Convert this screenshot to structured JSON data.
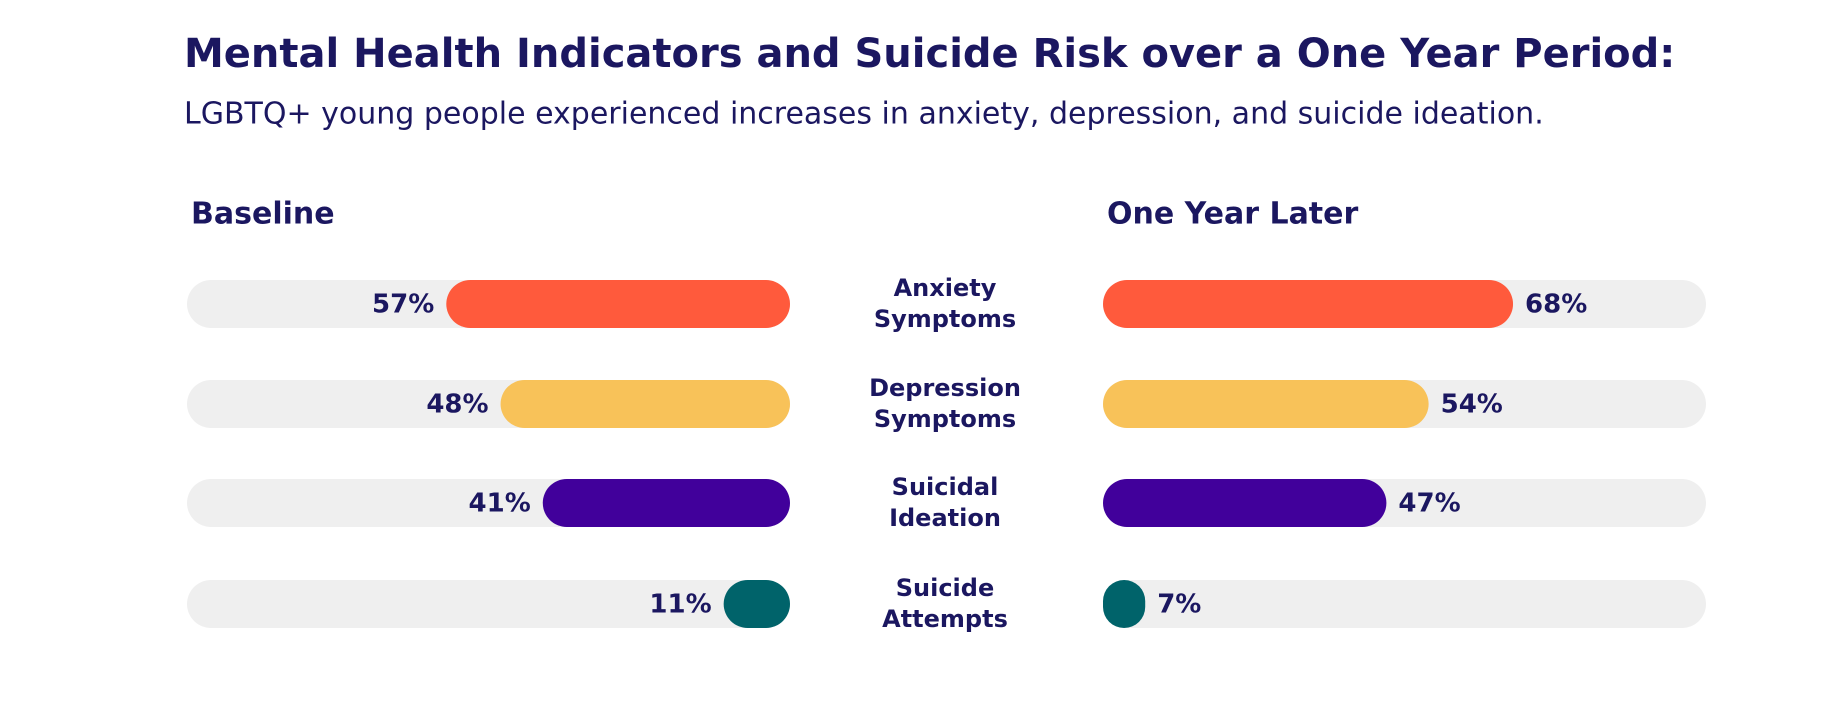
{
  "chart_data": {
    "type": "bar",
    "title": "Mental Health Indicators and Suicide Risk over a One Year Period:",
    "subtitle": "LGBTQ+ young people experienced increases in anxiety, depression, and suicide ideation.",
    "categories": [
      "Anxiety Symptoms",
      "Depression Symptoms",
      "Suicidal Ideation",
      "Suicide Attempts"
    ],
    "colors": [
      "#ff5a3c",
      "#f8c259",
      "#41009b",
      "#00636a"
    ],
    "track_color": "#efefef",
    "xlim": [
      0,
      100
    ],
    "series": [
      {
        "name": "Baseline",
        "values": [
          57,
          48,
          41,
          11
        ],
        "value_labels": [
          "57%",
          "48%",
          "41%",
          "11%"
        ]
      },
      {
        "name": "One Year Later",
        "values": [
          68,
          54,
          47,
          7
        ],
        "value_labels": [
          "68%",
          "54%",
          "47%",
          "7%"
        ]
      }
    ]
  }
}
